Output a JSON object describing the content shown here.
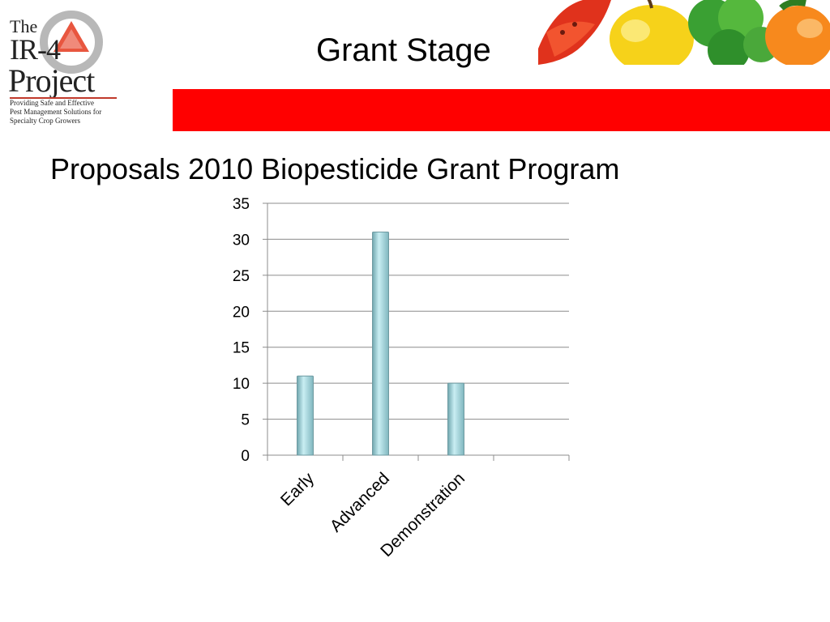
{
  "logo": {
    "line1": "The",
    "line2": "IR-4",
    "line3": "Project",
    "tagline": "Providing Safe and Effective Pest Management Solutions for Specialty Crop Growers"
  },
  "header": {
    "title": "Grant Stage"
  },
  "slide": {
    "subtitle": "Proposals 2010 Biopesticide Grant Program"
  },
  "colors": {
    "accent_bar": "#ff0000",
    "bar_fill": "#9fd3dc"
  },
  "chart_data": {
    "type": "bar",
    "title": "",
    "xlabel": "",
    "ylabel": "",
    "categories": [
      "Early",
      "Advanced",
      "Demonstration",
      ""
    ],
    "values": [
      11,
      31,
      10,
      null
    ],
    "ylim": [
      0,
      35
    ],
    "yticks": [
      0,
      5,
      10,
      15,
      20,
      25,
      30,
      35
    ],
    "ytick_labels": [
      "0",
      "5",
      "10",
      "15",
      "20",
      "25",
      "30",
      "35"
    ],
    "grid": true,
    "legend": "none"
  }
}
